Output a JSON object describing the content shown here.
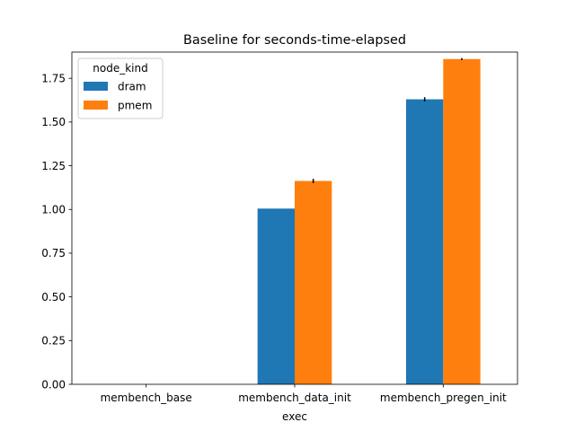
{
  "chart_data": {
    "type": "bar",
    "title": "Baseline for seconds-time-elapsed",
    "xlabel": "exec",
    "ylabel": "",
    "categories": [
      "membench_base",
      "membench_data_init",
      "membench_pregen_init"
    ],
    "series": [
      {
        "name": "dram",
        "color": "#1f77b4",
        "values": [
          0.0,
          1.005,
          1.63
        ],
        "errors": [
          0.0,
          0.0,
          0.012
        ]
      },
      {
        "name": "pmem",
        "color": "#ff7f0e",
        "values": [
          0.0,
          1.163,
          1.86
        ],
        "errors": [
          0.0,
          0.012,
          0.006
        ]
      }
    ],
    "ylim": [
      0,
      1.9
    ],
    "yticks": [
      "0.00",
      "0.25",
      "0.50",
      "0.75",
      "1.00",
      "1.25",
      "1.50",
      "1.75"
    ],
    "legend": {
      "title": "node_kind",
      "placement": "upper-left"
    },
    "grid": false
  }
}
